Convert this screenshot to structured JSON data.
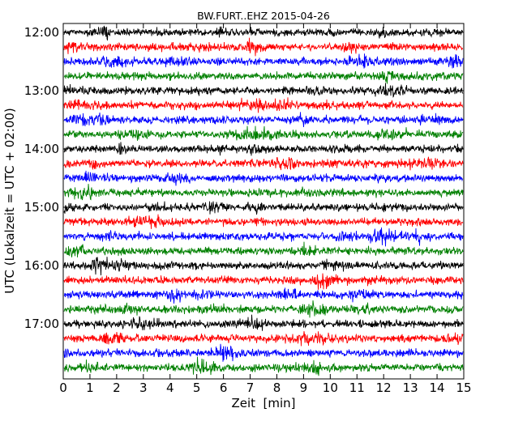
{
  "chart_data": {
    "type": "line",
    "title": "BW.FURT..EHZ 2015-04-26",
    "xlabel": "Zeit  [min]",
    "ylabel": "UTC (Lokalzeit = UTC + 02:00)",
    "xlim": [
      0,
      15
    ],
    "xticks": [
      "0",
      "1",
      "2",
      "3",
      "4",
      "5",
      "6",
      "7",
      "8",
      "9",
      "10",
      "11",
      "12",
      "13",
      "14",
      "15"
    ],
    "yticks": [
      "12:00",
      "13:00",
      "14:00",
      "15:00",
      "16:00",
      "17:00"
    ],
    "trace_interval_min": 15,
    "start_time": "12:00",
    "trace_colors": [
      "#000000",
      "#ff0000",
      "#0000ff",
      "#008000"
    ],
    "grid": false,
    "legend": "none"
  }
}
